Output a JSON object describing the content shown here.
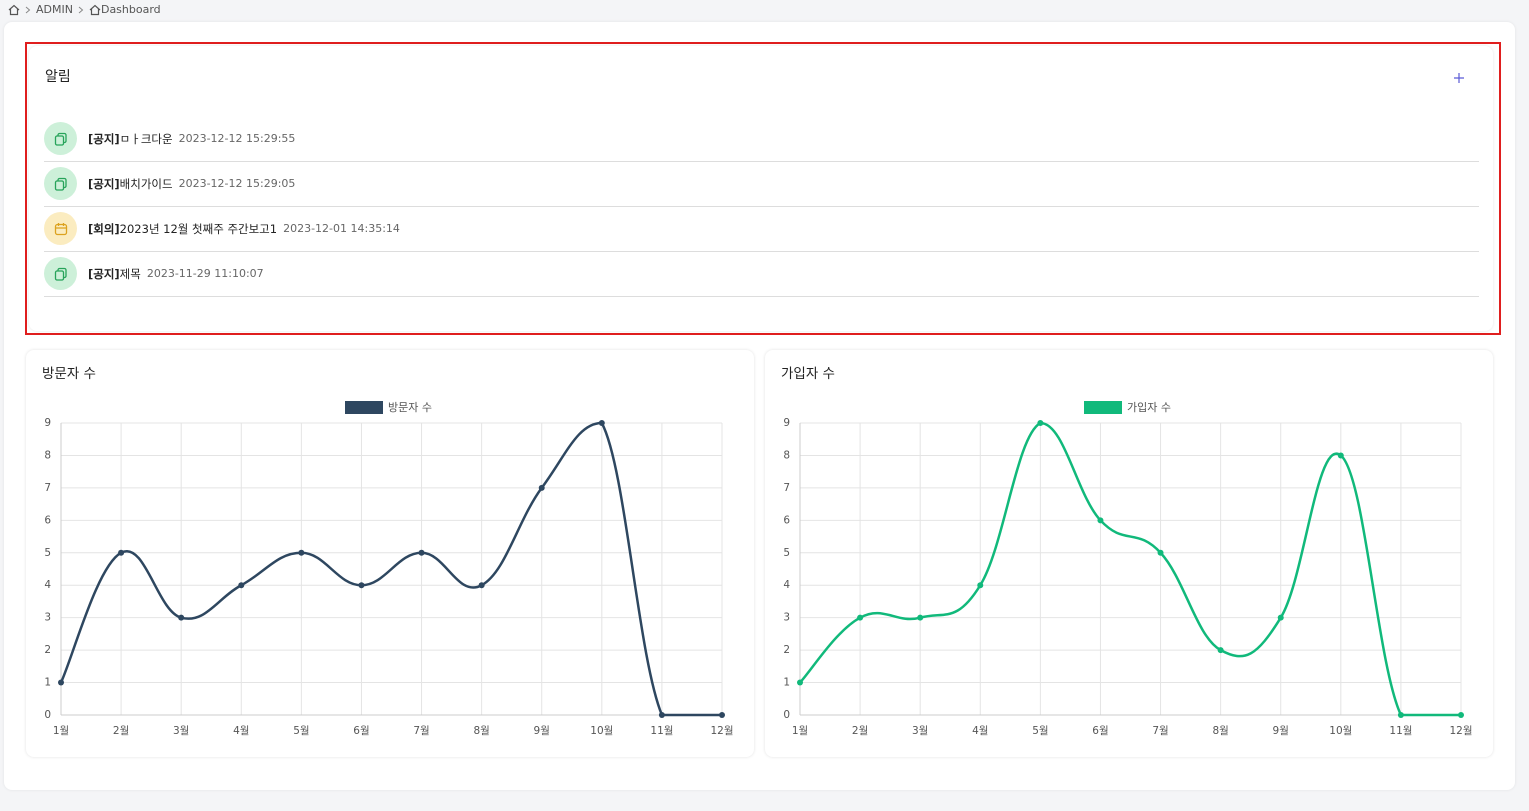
{
  "breadcrumb": [
    "ADMIN",
    "Dashboard"
  ],
  "notices": {
    "title": "알림",
    "items": [
      {
        "tag": "[공지]",
        "title": "ㅁㅏ크다운",
        "date": "2023-12-12 15:29:55"
      },
      {
        "tag": "[공지]",
        "title": "배치가이드",
        "date": "2023-12-12 15:29:05"
      },
      {
        "tag": "[회의]",
        "title": "2023년 12월 첫째주 주간보고1",
        "date": "2023-12-01 14:35:14"
      },
      {
        "tag": "[공지]",
        "title": "제목",
        "date": "2023-11-29 11:10:07"
      }
    ]
  },
  "chart_data": [
    {
      "type": "line",
      "title": "방문자 수",
      "categories": [
        "1월",
        "2월",
        "3월",
        "4월",
        "5월",
        "6월",
        "7월",
        "8월",
        "9월",
        "10월",
        "11월",
        "12월"
      ],
      "series": [
        {
          "name": "방문자 수",
          "color": "#2e4760",
          "values": [
            1,
            5,
            3,
            4,
            5,
            4,
            5,
            4,
            7,
            9,
            0,
            0
          ]
        }
      ],
      "ylim": [
        0,
        9
      ],
      "yticks": [
        0,
        1,
        2,
        3,
        4,
        5,
        6,
        7,
        8,
        9
      ],
      "grid": true,
      "legend": "top"
    },
    {
      "type": "line",
      "title": "가입자 수",
      "categories": [
        "1월",
        "2월",
        "3월",
        "4월",
        "5월",
        "6월",
        "7월",
        "8월",
        "9월",
        "10월",
        "11월",
        "12월"
      ],
      "series": [
        {
          "name": "가입자 수",
          "color": "#11b97b",
          "values": [
            1,
            3,
            3,
            4,
            9,
            6,
            5,
            2,
            3,
            8,
            0,
            0
          ]
        }
      ],
      "ylim": [
        0,
        9
      ],
      "yticks": [
        0,
        1,
        2,
        3,
        4,
        5,
        6,
        7,
        8,
        9
      ],
      "grid": true,
      "legend": "top"
    }
  ]
}
